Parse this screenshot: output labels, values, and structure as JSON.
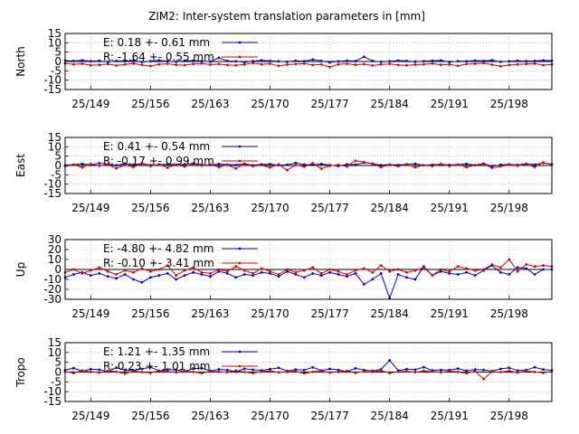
{
  "title": "ZIM2: Inter-system translation parameters in [mm]",
  "colors": {
    "e_series": "#0000c8",
    "r_series": "#e00000",
    "grid": "#a0a0a0",
    "axis": "#000000"
  },
  "chart_data": [
    {
      "type": "line",
      "ylabel": "North",
      "ylim": [
        -15,
        15
      ],
      "yticks": [
        15,
        10,
        5,
        0,
        -5,
        -10,
        -15
      ],
      "xlim": [
        146,
        203
      ],
      "xticks": [
        149,
        156,
        163,
        170,
        177,
        184,
        191,
        198
      ],
      "xtick_labels": [
        "25/149",
        "25/156",
        "25/163",
        "25/170",
        "25/177",
        "25/184",
        "25/191",
        "25/198"
      ],
      "grid": true,
      "legend": [
        {
          "text": "E:   0.18 +- 0.61 mm"
        },
        {
          "text": "R:  -1.64 +- 0.55 mm"
        }
      ],
      "series": [
        {
          "name": "E",
          "x": [
            146,
            147,
            148,
            149,
            150,
            151,
            152,
            153,
            154,
            155,
            156,
            157,
            158,
            159,
            160,
            161,
            162,
            163,
            164,
            165,
            166,
            167,
            168,
            169,
            170,
            171,
            172,
            173,
            174,
            175,
            176,
            177,
            178,
            179,
            180,
            181,
            182,
            183,
            184,
            185,
            186,
            187,
            188,
            189,
            190,
            191,
            192,
            193,
            194,
            195,
            196,
            197,
            198,
            199,
            200,
            201,
            202,
            203
          ],
          "values": [
            0.5,
            0.3,
            0.6,
            0.2,
            0.4,
            -0.2,
            0.3,
            0.1,
            0.5,
            -0.3,
            0.2,
            0.6,
            0.1,
            -0.2,
            0.3,
            0.5,
            0.2,
            -0.1,
            2.0,
            0.3,
            0.1,
            -0.4,
            0.2,
            0.6,
            0.3,
            0.1,
            -0.2,
            0.4,
            0.2,
            1.0,
            0.3,
            -0.5,
            0.1,
            0.4,
            0.2,
            2.5,
            0.3,
            -0.2,
            0.1,
            0.5,
            0.3,
            -0.1,
            0.2,
            0.4,
            0.6,
            -0.3,
            0.2,
            0.1,
            0.5,
            0.3,
            0.7,
            -0.2,
            0.1,
            0.4,
            0.2,
            0.3,
            0.6,
            0.4
          ]
        },
        {
          "name": "R",
          "x": [
            146,
            147,
            148,
            149,
            150,
            151,
            152,
            153,
            154,
            155,
            156,
            157,
            158,
            159,
            160,
            161,
            162,
            163,
            164,
            165,
            166,
            167,
            168,
            169,
            170,
            171,
            172,
            173,
            174,
            175,
            176,
            177,
            178,
            179,
            180,
            181,
            182,
            183,
            184,
            185,
            186,
            187,
            188,
            189,
            190,
            191,
            192,
            193,
            194,
            195,
            196,
            197,
            198,
            199,
            200,
            201,
            202,
            203
          ],
          "values": [
            -1.0,
            -1.5,
            -1.2,
            -2.0,
            -1.8,
            -1.3,
            -2.2,
            -1.6,
            -1.1,
            -1.9,
            -2.4,
            -1.5,
            -1.2,
            -1.8,
            -2.0,
            -1.3,
            -1.0,
            -1.7,
            -1.4,
            -1.9,
            -2.1,
            -1.6,
            -0.8,
            -1.5,
            -1.2,
            -2.3,
            -1.7,
            -1.4,
            -1.1,
            -1.9,
            -1.6,
            -3.0,
            -1.5,
            -1.2,
            -1.8,
            -1.4,
            -2.2,
            -1.6,
            -1.3,
            -1.9,
            -2.1,
            -1.7,
            -1.5,
            -1.0,
            -1.8,
            -1.6,
            -2.3,
            -1.4,
            -1.2,
            -0.9,
            -1.7,
            -2.5,
            -1.9,
            -1.6,
            -1.3,
            -1.1,
            -2.0,
            -1.5
          ]
        }
      ]
    },
    {
      "type": "line",
      "ylabel": "East",
      "ylim": [
        -15,
        15
      ],
      "yticks": [
        15,
        10,
        5,
        0,
        -5,
        -10,
        -15
      ],
      "xlim": [
        146,
        203
      ],
      "xticks": [
        149,
        156,
        163,
        170,
        177,
        184,
        191,
        198
      ],
      "xtick_labels": [
        "25/149",
        "25/156",
        "25/163",
        "25/170",
        "25/177",
        "25/184",
        "25/191",
        "25/198"
      ],
      "grid": true,
      "legend": [
        {
          "text": "E:   0.41 +- 0.54 mm"
        },
        {
          "text": "R:  -0.17 +- 0.99 mm"
        }
      ],
      "series": [
        {
          "name": "E",
          "x": [
            146,
            147,
            148,
            149,
            150,
            151,
            152,
            153,
            154,
            155,
            156,
            157,
            158,
            159,
            160,
            161,
            162,
            163,
            164,
            165,
            166,
            167,
            168,
            169,
            170,
            171,
            172,
            173,
            174,
            175,
            176,
            177,
            178,
            179,
            180,
            181,
            182,
            183,
            184,
            185,
            186,
            187,
            188,
            189,
            190,
            191,
            192,
            193,
            194,
            195,
            196,
            197,
            198,
            199,
            200,
            201,
            202,
            203
          ],
          "values": [
            0.2,
            0.5,
            0.8,
            0.3,
            1.2,
            0.6,
            0.1,
            0.9,
            0.4,
            1.0,
            0.2,
            0.5,
            0.7,
            0.3,
            0.6,
            1.1,
            0.4,
            0.2,
            0.8,
            0.5,
            0.3,
            0.9,
            0.1,
            0.6,
            0.7,
            0.2,
            0.4,
            1.3,
            0.5,
            0.3,
            0.8,
            0.2,
            -0.3,
            0.6,
            0.4,
            1.5,
            1.0,
            0.2,
            0.5,
            0.3,
            0.7,
            0.9,
            0.1,
            0.4,
            0.6,
            0.3,
            0.5,
            0.8,
            0.2,
            1.0,
            -0.5,
            0.4,
            0.6,
            0.3,
            0.9,
            0.5,
            1.4,
            0.7
          ]
        },
        {
          "name": "R",
          "x": [
            146,
            147,
            148,
            149,
            150,
            151,
            152,
            153,
            154,
            155,
            156,
            157,
            158,
            159,
            160,
            161,
            162,
            163,
            164,
            165,
            166,
            167,
            168,
            169,
            170,
            171,
            172,
            173,
            174,
            175,
            176,
            177,
            178,
            179,
            180,
            181,
            182,
            183,
            184,
            185,
            186,
            187,
            188,
            189,
            190,
            191,
            192,
            193,
            194,
            195,
            196,
            197,
            198,
            199,
            200,
            201,
            202,
            203
          ],
          "values": [
            -0.5,
            0.3,
            -1.0,
            0.8,
            -0.2,
            0.5,
            -1.5,
            0.2,
            -0.8,
            1.0,
            -0.3,
            0.6,
            -1.2,
            0.4,
            -0.6,
            0.9,
            -0.1,
            0.5,
            -0.9,
            0.3,
            -1.6,
            0.7,
            -0.4,
            0.2,
            -1.1,
            0.6,
            -2.5,
            0.3,
            -0.7,
            1.2,
            -1.8,
            -0.2,
            0.4,
            -0.6,
            2.5,
            1.8,
            0.9,
            -0.8,
            0.3,
            -0.5,
            0.6,
            -1.0,
            0.2,
            -0.4,
            0.8,
            -0.3,
            0.5,
            -0.9,
            0.1,
            0.7,
            -1.3,
            -0.5,
            0.4,
            -0.2,
            0.6,
            -0.8,
            1.6,
            0.3
          ]
        }
      ]
    },
    {
      "type": "line",
      "ylabel": "Up",
      "ylim": [
        -30,
        30
      ],
      "yticks": [
        30,
        20,
        10,
        0,
        -10,
        -20,
        -30
      ],
      "xlim": [
        146,
        203
      ],
      "xticks": [
        149,
        156,
        163,
        170,
        177,
        184,
        191,
        198
      ],
      "xtick_labels": [
        "25/149",
        "25/156",
        "25/163",
        "25/170",
        "25/177",
        "25/184",
        "25/191",
        "25/198"
      ],
      "grid": true,
      "legend": [
        {
          "text": "E:  -4.80 +- 4.82 mm"
        },
        {
          "text": "R:  -0.10 +- 3.41 mm"
        }
      ],
      "series": [
        {
          "name": "E",
          "x": [
            146,
            147,
            148,
            149,
            150,
            151,
            152,
            153,
            154,
            155,
            156,
            157,
            158,
            159,
            160,
            161,
            162,
            163,
            164,
            165,
            166,
            167,
            168,
            169,
            170,
            171,
            172,
            173,
            174,
            175,
            176,
            177,
            178,
            179,
            180,
            181,
            182,
            183,
            184,
            185,
            186,
            187,
            188,
            189,
            190,
            191,
            192,
            193,
            194,
            195,
            196,
            197,
            198,
            199,
            200,
            201,
            202,
            203
          ],
          "values": [
            -8,
            -5,
            -3,
            -6,
            -4,
            -7,
            -9,
            -5,
            -10,
            -13,
            -8,
            -6,
            -4,
            -10,
            -6,
            -3,
            -5,
            -7,
            -2,
            -4,
            -8,
            -5,
            -6,
            -3,
            -4,
            -7,
            -2,
            -5,
            -8,
            -4,
            -6,
            -3,
            -5,
            -7,
            -4,
            -15,
            -10,
            -4,
            -29,
            -5,
            -8,
            -10,
            3,
            -6,
            -2,
            -4,
            -5,
            -3,
            -6,
            -1,
            4,
            -3,
            -5,
            2,
            1,
            -5,
            0,
            0
          ]
        },
        {
          "name": "R",
          "x": [
            146,
            147,
            148,
            149,
            150,
            151,
            152,
            153,
            154,
            155,
            156,
            157,
            158,
            159,
            160,
            161,
            162,
            163,
            164,
            165,
            166,
            167,
            168,
            169,
            170,
            171,
            172,
            173,
            174,
            175,
            176,
            177,
            178,
            179,
            180,
            181,
            182,
            183,
            184,
            185,
            186,
            187,
            188,
            189,
            190,
            191,
            192,
            193,
            194,
            195,
            196,
            197,
            198,
            199,
            200,
            201,
            202,
            203
          ],
          "values": [
            -3,
            0,
            -4,
            -1,
            2,
            -2,
            -5,
            -1,
            -3,
            1,
            -2,
            0,
            4,
            -6,
            -1,
            2,
            -3,
            -4,
            0,
            -2,
            3,
            -1,
            -4,
            1,
            -2,
            -5,
            0,
            -3,
            -1,
            2,
            -4,
            0,
            -2,
            -5,
            -1,
            1,
            -3,
            4,
            -2,
            0,
            -3,
            -1,
            2,
            -6,
            0,
            -2,
            3,
            1,
            -1,
            0,
            5,
            2,
            10,
            -2,
            5,
            3,
            4,
            3
          ]
        }
      ]
    },
    {
      "type": "line",
      "ylabel": "Tropo",
      "ylim": [
        -15,
        15
      ],
      "yticks": [
        15,
        10,
        5,
        0,
        -5,
        -10,
        -15
      ],
      "xlim": [
        146,
        203
      ],
      "xticks": [
        149,
        156,
        163,
        170,
        177,
        184,
        191,
        198
      ],
      "xtick_labels": [
        "25/149",
        "25/156",
        "25/163",
        "25/170",
        "25/177",
        "25/184",
        "25/191",
        "25/198"
      ],
      "grid": true,
      "legend": [
        {
          "text": "E:   1.21 +- 1.35 mm"
        },
        {
          "text": "R:   0.23 +- 1.01 mm"
        }
      ],
      "series": [
        {
          "name": "E",
          "x": [
            146,
            147,
            148,
            149,
            150,
            151,
            152,
            153,
            154,
            155,
            156,
            157,
            158,
            159,
            160,
            161,
            162,
            163,
            164,
            165,
            166,
            167,
            168,
            169,
            170,
            171,
            172,
            173,
            174,
            175,
            176,
            177,
            178,
            179,
            180,
            181,
            182,
            183,
            184,
            185,
            186,
            187,
            188,
            189,
            190,
            191,
            192,
            193,
            194,
            195,
            196,
            197,
            198,
            199,
            200,
            201,
            202,
            203
          ],
          "values": [
            1.0,
            2.0,
            0.5,
            1.5,
            1.2,
            0.3,
            2.2,
            1.0,
            0.8,
            1.6,
            2.5,
            0.7,
            1.3,
            1.1,
            0.4,
            1.8,
            2.0,
            0.6,
            1.4,
            1.0,
            0.2,
            1.7,
            1.2,
            0.9,
            1.5,
            2.1,
            0.5,
            1.3,
            1.0,
            2.4,
            0.8,
            1.6,
            1.1,
            0.3,
            1.9,
            1.0,
            0.6,
            1.4,
            6.0,
            0.8,
            1.5,
            1.2,
            2.5,
            0.9,
            1.1,
            1.0,
            1.8,
            0.7,
            1.3,
            1.1,
            0.5,
            1.6,
            2.2,
            0.8,
            1.0,
            2.5,
            1.3,
            0.9
          ]
        },
        {
          "name": "R",
          "x": [
            146,
            147,
            148,
            149,
            150,
            151,
            152,
            153,
            154,
            155,
            156,
            157,
            158,
            159,
            160,
            161,
            162,
            163,
            164,
            165,
            166,
            167,
            168,
            169,
            170,
            171,
            172,
            173,
            174,
            175,
            176,
            177,
            178,
            179,
            180,
            181,
            182,
            183,
            184,
            185,
            186,
            187,
            188,
            189,
            190,
            191,
            192,
            193,
            194,
            195,
            196,
            197,
            198,
            199,
            200,
            201,
            202,
            203
          ],
          "values": [
            0.3,
            -0.5,
            0.8,
            0.1,
            -0.3,
            0.6,
            0.2,
            -0.8,
            0.5,
            0.0,
            -0.4,
            0.7,
            0.3,
            -0.2,
            0.5,
            0.1,
            -0.6,
            0.4,
            0.2,
            -0.1,
            0.8,
            0.0,
            -0.5,
            0.3,
            0.6,
            -0.2,
            0.1,
            0.4,
            -0.7,
            0.2,
            0.5,
            -0.3,
            0.1,
            0.6,
            -0.4,
            0.3,
            0.0,
            0.8,
            -0.5,
            0.2,
            0.4,
            -0.1,
            0.6,
            0.3,
            -0.2,
            0.5,
            0.1,
            -0.6,
            0.4,
            -3.5,
            0.2,
            0.0,
            0.7,
            -0.3,
            0.5,
            0.1,
            -0.4,
            0.3
          ]
        }
      ]
    }
  ]
}
